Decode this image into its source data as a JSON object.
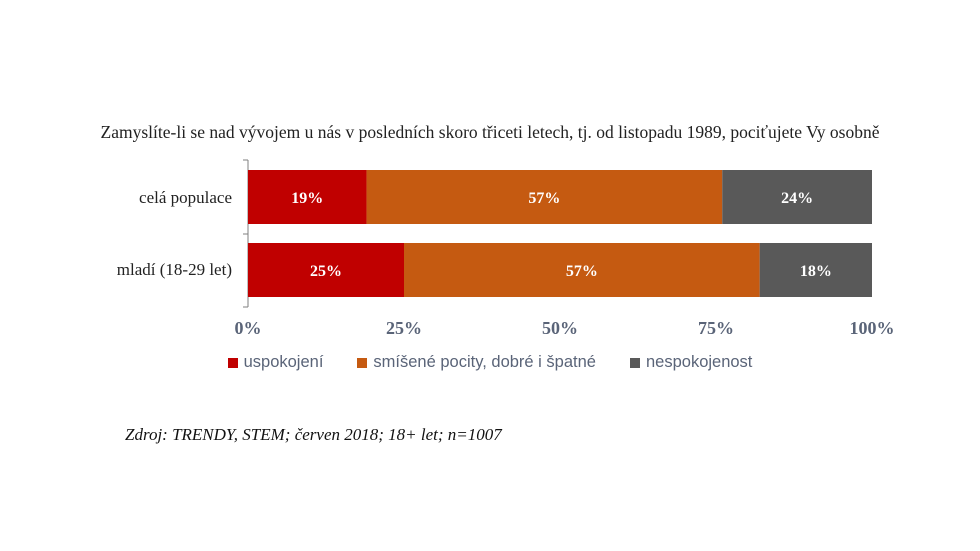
{
  "chart_data": {
    "type": "bar",
    "orientation": "horizontal",
    "stacked": true,
    "title": "Zamyslíte-li se nad vývojem u nás v posledních skoro třiceti letech, tj. od listopadu 1989, pociťujete Vy osobně",
    "categories": [
      "celá populace",
      "mladí (18-29 let)"
    ],
    "series": [
      {
        "name": "uspokojení",
        "values": [
          19,
          25
        ],
        "labels": [
          "19%",
          "25%"
        ],
        "color": "#c00000"
      },
      {
        "name": "smíšené pocity, dobré i špatné",
        "values": [
          57,
          57
        ],
        "labels": [
          "57%",
          "57%"
        ],
        "color": "#c55a11"
      },
      {
        "name": "nespokojenost",
        "values": [
          24,
          18
        ],
        "labels": [
          "24%",
          "18%"
        ],
        "color": "#595959"
      }
    ],
    "xlim": [
      0,
      100
    ],
    "xticks": [
      "0%",
      "25%",
      "50%",
      "75%",
      "100%"
    ],
    "grid": false,
    "legend_position": "bottom"
  },
  "source": "Zdroj: TRENDY, STEM; červen 2018; 18+ let; n=1007"
}
